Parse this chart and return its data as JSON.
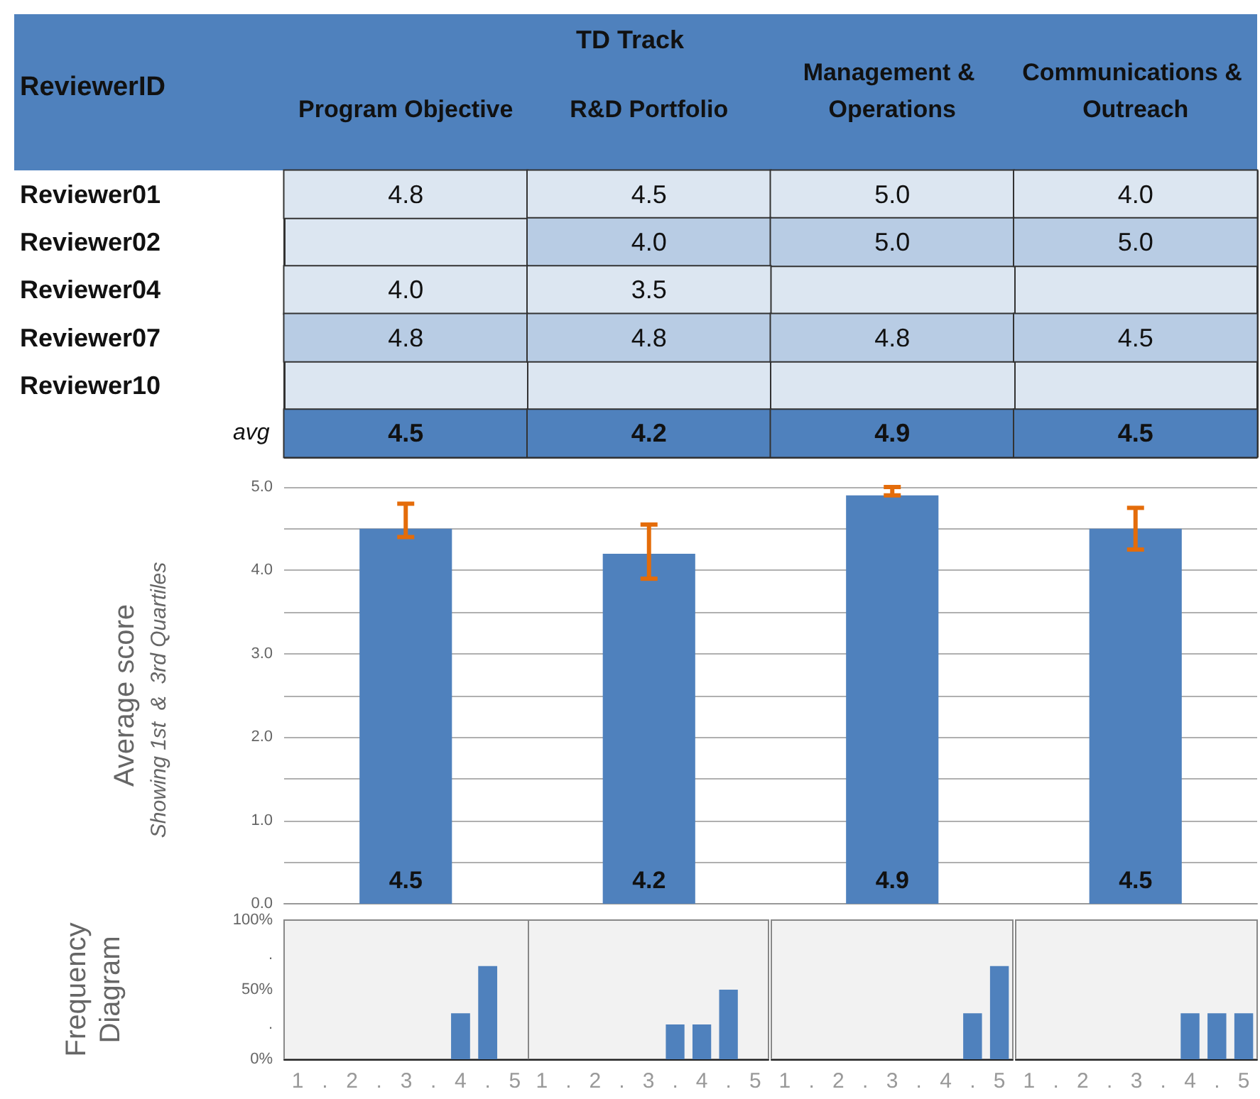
{
  "chart_data": [
    {
      "type": "heatmap",
      "title": "TD Track",
      "ylabel": "ReviewerID",
      "categories": [
        "Program Objective",
        "R&D Portfolio",
        "Management & Operations",
        "Communications & Outreach"
      ],
      "y_categories": [
        "Reviewer01",
        "Reviewer02",
        "Reviewer04",
        "Reviewer07",
        "Reviewer10",
        "avg"
      ],
      "cells": [
        [
          4.8,
          4.5,
          5.0,
          4.0
        ],
        [
          null,
          4.0,
          5.0,
          5.0
        ],
        [
          4.0,
          3.5,
          null,
          null
        ],
        [
          4.8,
          4.8,
          4.8,
          4.5
        ],
        [
          null,
          null,
          null,
          null
        ],
        [
          4.5,
          4.2,
          4.9,
          4.5
        ]
      ],
      "data_labels": true,
      "cell_labels": [
        [
          "4.8",
          "4.5",
          "5.0",
          "4.0"
        ],
        [
          null,
          "4.0",
          "5.0",
          "5.0"
        ],
        [
          "4.0",
          "3.5",
          null,
          null
        ],
        [
          "4.8",
          "4.8",
          "4.8",
          "4.5"
        ],
        [
          null,
          null,
          null,
          null
        ],
        [
          "4.5",
          "4.2",
          "4.9",
          "4.5"
        ]
      ]
    },
    {
      "type": "bar",
      "ylabel": "Average score",
      "subtitle": "Showing 1st  &  3rd Quartiles",
      "categories": [
        null,
        null,
        null,
        null
      ],
      "values": [
        4.5,
        4.2,
        4.9,
        4.5
      ],
      "color": "#4f81bd",
      "errors": [
        [
          4.4,
          4.8
        ],
        [
          3.9,
          4.55
        ],
        [
          4.9,
          5.0
        ],
        [
          4.25,
          4.75
        ]
      ],
      "data_labels": true,
      "ylim": [
        0,
        5
      ],
      "yticks": [
        {
          "value": 0,
          "label": "0.0"
        },
        {
          "value": 0.5,
          "label": null
        },
        {
          "value": 1,
          "label": "1.0"
        },
        {
          "value": 1.5,
          "label": null
        },
        {
          "value": 2,
          "label": "2.0"
        },
        {
          "value": 2.5,
          "label": null
        },
        {
          "value": 3,
          "label": "3.0"
        },
        {
          "value": 3.5,
          "label": null
        },
        {
          "value": 4,
          "label": "4.0"
        },
        {
          "value": 4.5,
          "label": null
        },
        {
          "value": 5,
          "label": "5.0"
        }
      ],
      "grid": "y",
      "tick_labels": "y"
    },
    {
      "type": "bar",
      "ylabel": "Frequency Diagram",
      "categories": [
        "1",
        ".",
        "2",
        ".",
        "3",
        ".",
        "4",
        ".",
        "5"
      ],
      "values": [
        0,
        0,
        0,
        0,
        0,
        0,
        33,
        67,
        0
      ],
      "color": "#4f81bd",
      "ylim": [
        0,
        100
      ],
      "yticks": [
        {
          "value": 0,
          "label": "0%"
        },
        {
          "value": 25,
          "label": "."
        },
        {
          "value": 50,
          "label": "50%"
        },
        {
          "value": 75,
          "label": "."
        },
        {
          "value": 100,
          "label": "100%"
        }
      ],
      "grid": false
    },
    {
      "type": "bar",
      "categories": [
        "1",
        ".",
        "2",
        ".",
        "3",
        ".",
        "4",
        ".",
        "5"
      ],
      "values": [
        0,
        0,
        0,
        0,
        0,
        25,
        25,
        50,
        0
      ],
      "color": "#4f81bd",
      "ylim": [
        0,
        100
      ],
      "grid": false,
      "tick_labels": "x"
    },
    {
      "type": "bar",
      "categories": [
        "1",
        ".",
        "2",
        ".",
        "3",
        ".",
        "4",
        ".",
        "5"
      ],
      "values": [
        0,
        0,
        0,
        0,
        0,
        0,
        0,
        33,
        67
      ],
      "color": "#4f81bd",
      "ylim": [
        0,
        100
      ],
      "grid": false,
      "tick_labels": "x"
    },
    {
      "type": "bar",
      "categories": [
        "1",
        ".",
        "2",
        ".",
        "3",
        ".",
        "4",
        ".",
        "5"
      ],
      "values": [
        0,
        0,
        0,
        0,
        0,
        0,
        33,
        33,
        33
      ],
      "color": "#4f81bd",
      "ylim": [
        0,
        100
      ],
      "grid": false,
      "tick_labels": "x"
    }
  ]
}
